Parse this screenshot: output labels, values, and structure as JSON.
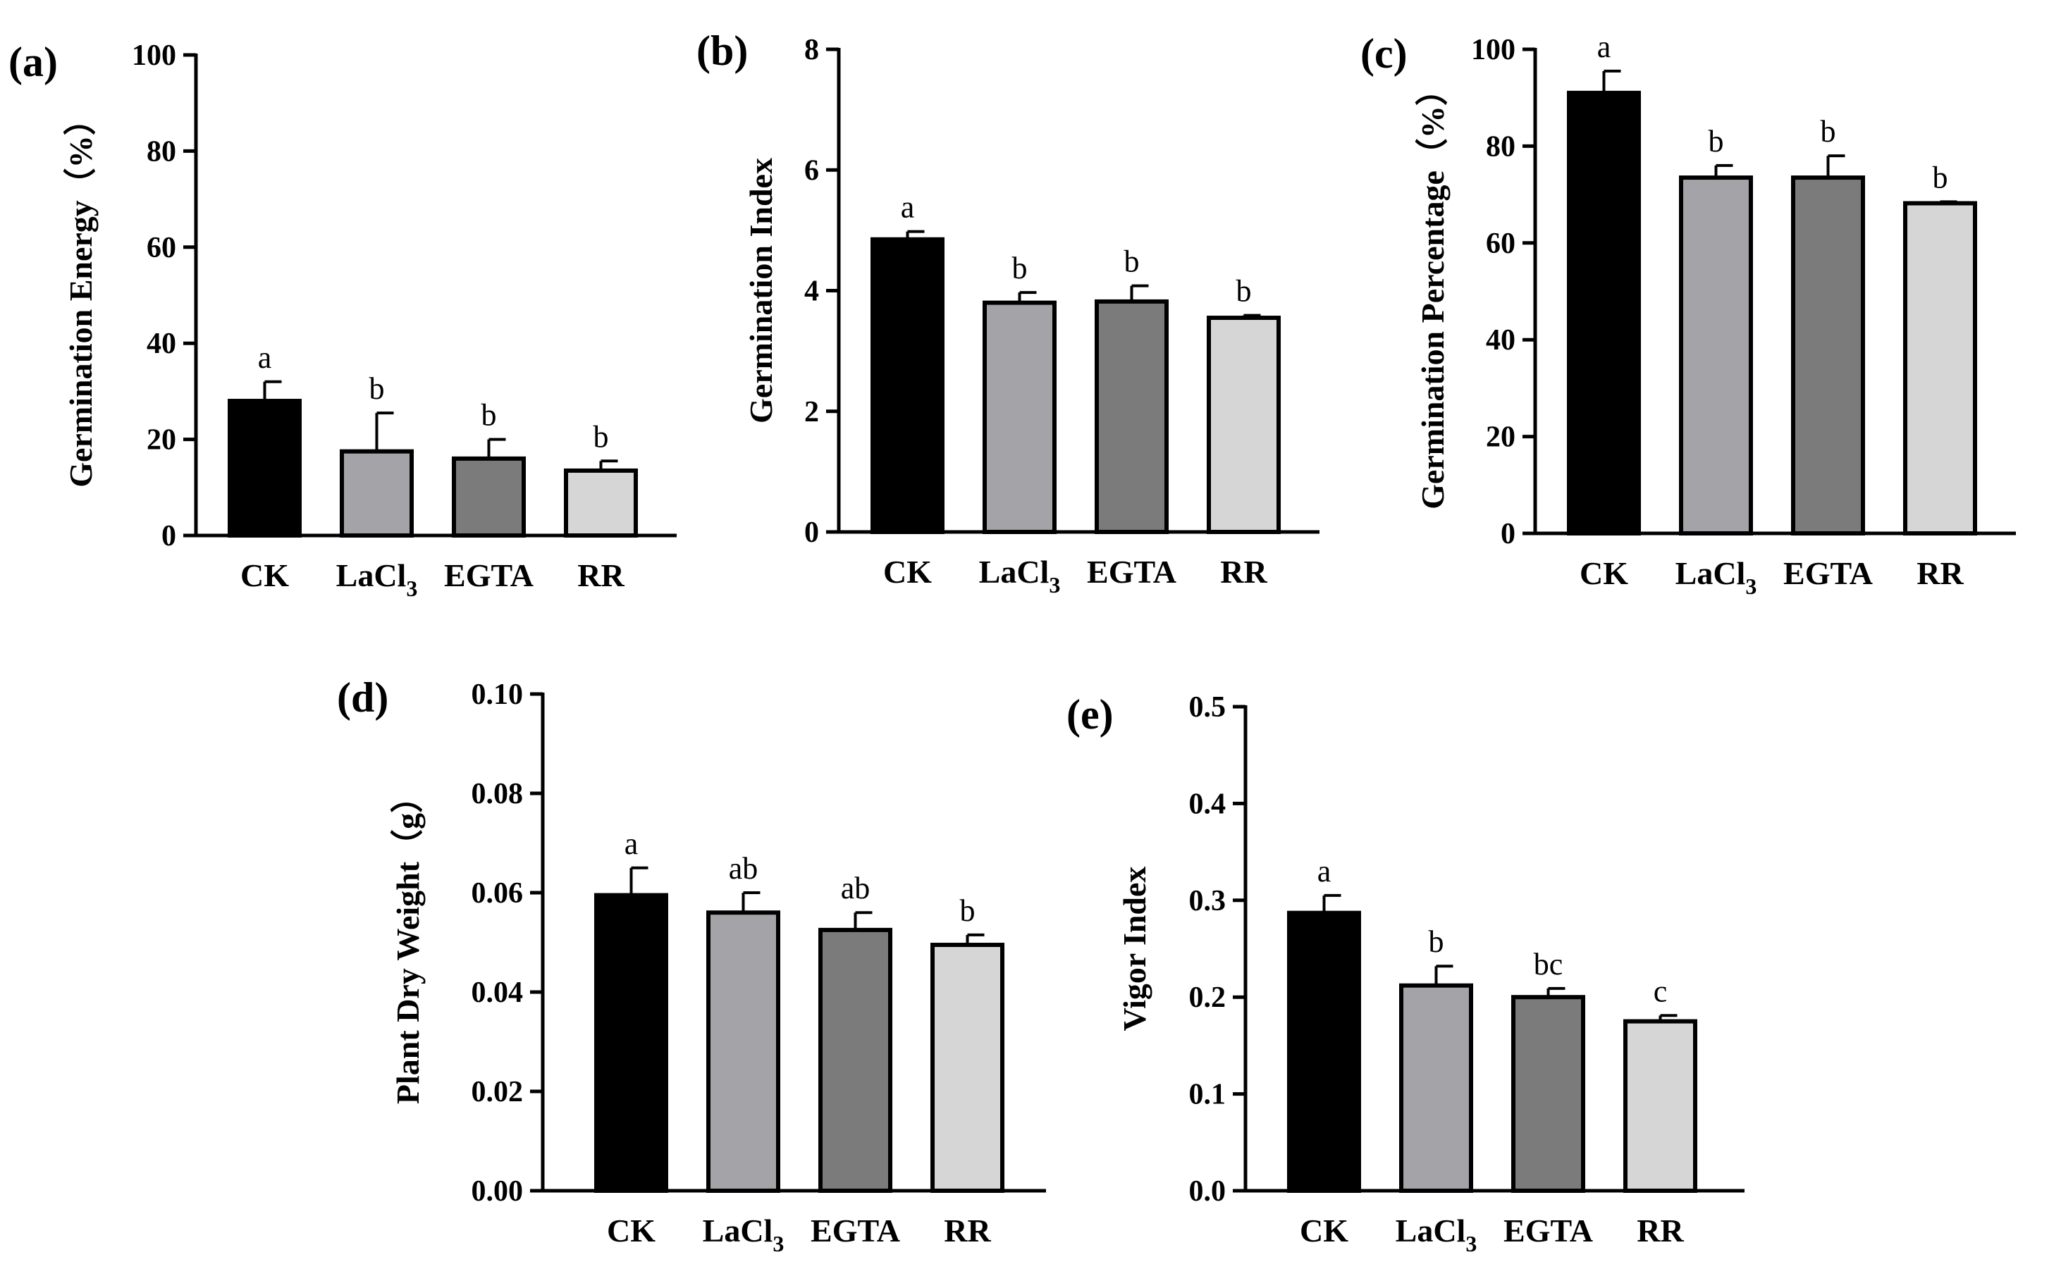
{
  "figure": {
    "background": "#ffffff",
    "axis_color": "#000000"
  },
  "chart_data": [
    {
      "type": "bar",
      "panel": "(a)",
      "title": "",
      "xlabel": "",
      "ylabel": "Germination Energy（%）",
      "ylim": [
        0,
        100
      ],
      "yticks": [
        0,
        20,
        40,
        60,
        80,
        100
      ],
      "ytick_labels": [
        "0",
        "20",
        "40",
        "60",
        "80",
        "100"
      ],
      "categories": [
        {
          "main": "CK",
          "sub": ""
        },
        {
          "main": "LaCl",
          "sub": "3"
        },
        {
          "main": "EGTA",
          "sub": ""
        },
        {
          "main": "RR",
          "sub": ""
        }
      ],
      "values": [
        28,
        17.5,
        16,
        13.5
      ],
      "errors": [
        4,
        8,
        4,
        2
      ],
      "letters": [
        "a",
        "b",
        "b",
        "b"
      ],
      "colors": [
        "#000000",
        "#a3a3a8",
        "#7b7b7b",
        "#d6d6d6"
      ]
    },
    {
      "type": "bar",
      "panel": "(b)",
      "title": "",
      "xlabel": "",
      "ylabel": "Germination Index",
      "ylim": [
        0,
        8
      ],
      "yticks": [
        0,
        2,
        4,
        6,
        8
      ],
      "ytick_labels": [
        "0",
        "2",
        "4",
        "6",
        "8"
      ],
      "categories": [
        {
          "main": "CK",
          "sub": ""
        },
        {
          "main": "LaCl",
          "sub": "3"
        },
        {
          "main": "EGTA",
          "sub": ""
        },
        {
          "main": "RR",
          "sub": ""
        }
      ],
      "values": [
        4.85,
        3.8,
        3.82,
        3.55
      ],
      "errors": [
        0.13,
        0.17,
        0.26,
        0.04
      ],
      "letters": [
        "a",
        "b",
        "b",
        "b"
      ],
      "colors": [
        "#000000",
        "#a3a3a8",
        "#7b7b7b",
        "#d6d6d6"
      ]
    },
    {
      "type": "bar",
      "panel": "(c)",
      "title": "",
      "xlabel": "",
      "ylabel": "Germination Percentage（%）",
      "ylim": [
        0,
        100
      ],
      "yticks": [
        0,
        20,
        40,
        60,
        80,
        100
      ],
      "ytick_labels": [
        "0",
        "20",
        "40",
        "60",
        "80",
        "100"
      ],
      "categories": [
        {
          "main": "CK",
          "sub": ""
        },
        {
          "main": "LaCl",
          "sub": "3"
        },
        {
          "main": "EGTA",
          "sub": ""
        },
        {
          "main": "RR",
          "sub": ""
        }
      ],
      "values": [
        91,
        73.5,
        73.5,
        68.2
      ],
      "errors": [
        4.5,
        2.5,
        4.5,
        0.3
      ],
      "letters": [
        "a",
        "b",
        "b",
        "b"
      ],
      "colors": [
        "#000000",
        "#a3a3a8",
        "#7b7b7b",
        "#d6d6d6"
      ]
    },
    {
      "type": "bar",
      "panel": "(d)",
      "title": "",
      "xlabel": "",
      "ylabel": "Plant Dry Weight（g）",
      "ylim": [
        0,
        0.1
      ],
      "yticks": [
        0,
        0.02,
        0.04,
        0.06,
        0.08,
        0.1
      ],
      "ytick_labels": [
        "0.00",
        "0.02",
        "0.04",
        "0.06",
        "0.08",
        "0.10"
      ],
      "categories": [
        {
          "main": "CK",
          "sub": ""
        },
        {
          "main": "LaCl",
          "sub": "3"
        },
        {
          "main": "EGTA",
          "sub": ""
        },
        {
          "main": "RR",
          "sub": ""
        }
      ],
      "values": [
        0.0595,
        0.056,
        0.0525,
        0.0495
      ],
      "errors": [
        0.0055,
        0.004,
        0.0035,
        0.002
      ],
      "letters": [
        "a",
        "ab",
        "ab",
        "b"
      ],
      "colors": [
        "#000000",
        "#a3a3a8",
        "#7b7b7b",
        "#d6d6d6"
      ]
    },
    {
      "type": "bar",
      "panel": "(e)",
      "title": "",
      "xlabel": "",
      "ylabel": "Vigor Index",
      "ylim": [
        0,
        0.5
      ],
      "yticks": [
        0,
        0.1,
        0.2,
        0.3,
        0.4,
        0.5
      ],
      "ytick_labels": [
        "0.0",
        "0.1",
        "0.2",
        "0.3",
        "0.4",
        "0.5"
      ],
      "categories": [
        {
          "main": "CK",
          "sub": ""
        },
        {
          "main": "LaCl",
          "sub": "3"
        },
        {
          "main": "EGTA",
          "sub": ""
        },
        {
          "main": "RR",
          "sub": ""
        }
      ],
      "values": [
        0.287,
        0.212,
        0.2,
        0.175
      ],
      "errors": [
        0.018,
        0.02,
        0.009,
        0.006
      ],
      "letters": [
        "a",
        "b",
        "bc",
        "c"
      ],
      "colors": [
        "#000000",
        "#a3a3a8",
        "#7b7b7b",
        "#d6d6d6"
      ]
    }
  ]
}
